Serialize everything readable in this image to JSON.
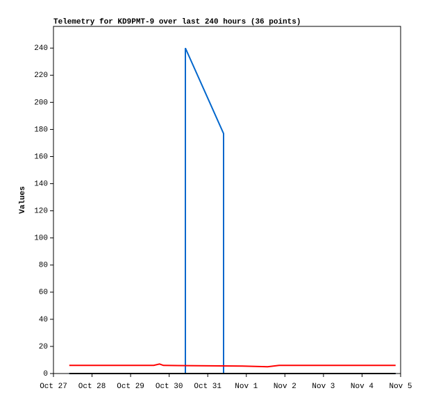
{
  "chart_data": {
    "type": "line",
    "title": "Telemetry for KD9PMT-9 over last 240 hours (36 points)",
    "y_label": "Values",
    "xlim": [
      0,
      9
    ],
    "xticks": [
      {
        "value": 0,
        "label": "Oct 27"
      },
      {
        "value": 1,
        "label": "Oct 28"
      },
      {
        "value": 2,
        "label": "Oct 29"
      },
      {
        "value": 3,
        "label": "Oct 30"
      },
      {
        "value": 4,
        "label": "Oct 31"
      },
      {
        "value": 5,
        "label": "Nov 1"
      },
      {
        "value": 6,
        "label": "Nov 2"
      },
      {
        "value": 7,
        "label": "Nov 3"
      },
      {
        "value": 8,
        "label": "Nov 4"
      },
      {
        "value": 9,
        "label": "Nov 5"
      }
    ],
    "ylim": [
      0,
      256
    ],
    "yticks": [
      0,
      20,
      40,
      60,
      80,
      100,
      120,
      140,
      160,
      180,
      200,
      220,
      240
    ],
    "series": [
      {
        "color": "#0066cc",
        "x": [
          0.41,
          3.42,
          3.42,
          4.41,
          4.41,
          8.87
        ],
        "values": [
          0,
          0,
          240,
          177,
          0,
          0
        ]
      },
      {
        "color": "#ff0000",
        "x": [
          0.41,
          2.6,
          2.75,
          2.85,
          4.9,
          5.55,
          5.85,
          8.87
        ],
        "values": [
          6,
          6,
          7,
          6,
          5.5,
          5,
          6,
          6
        ]
      },
      {
        "color": "#000000",
        "x": [
          0.41,
          8.87
        ],
        "values": [
          0,
          0
        ]
      }
    ]
  }
}
